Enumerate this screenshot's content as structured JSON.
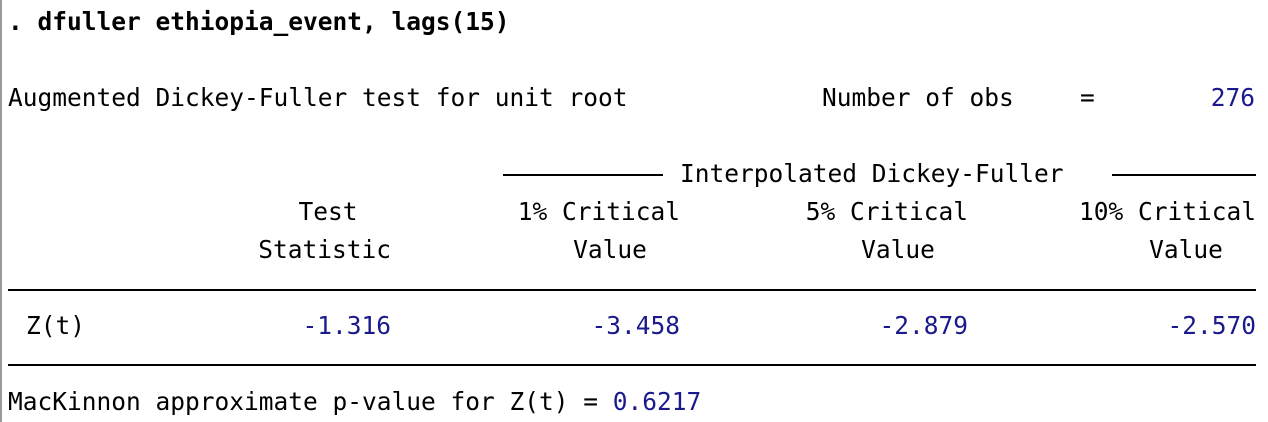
{
  "command": ". dfuller ethiopia_event, lags(15)",
  "header": {
    "title": "Augmented Dickey-Fuller test for unit root",
    "obs_label": "Number of obs",
    "obs_eq": "=",
    "obs_value": "276"
  },
  "table": {
    "group_header": "Interpolated Dickey-Fuller",
    "columns": [
      {
        "line1": "Test",
        "line2": "Statistic"
      },
      {
        "line1": "1% Critical",
        "line2": "Value"
      },
      {
        "line1": "5% Critical",
        "line2": "Value"
      },
      {
        "line1": "10% Critical",
        "line2": "Value"
      }
    ],
    "row": {
      "label": "Z(t)",
      "values": [
        "-1.316",
        "-3.458",
        "-2.879",
        "-2.570"
      ]
    }
  },
  "footer": {
    "text": "MacKinnon approximate p-value for Z(t) = ",
    "pvalue": "0.6217"
  },
  "colors": {
    "result_blue": "#1a1a8c",
    "text": "#000000"
  }
}
